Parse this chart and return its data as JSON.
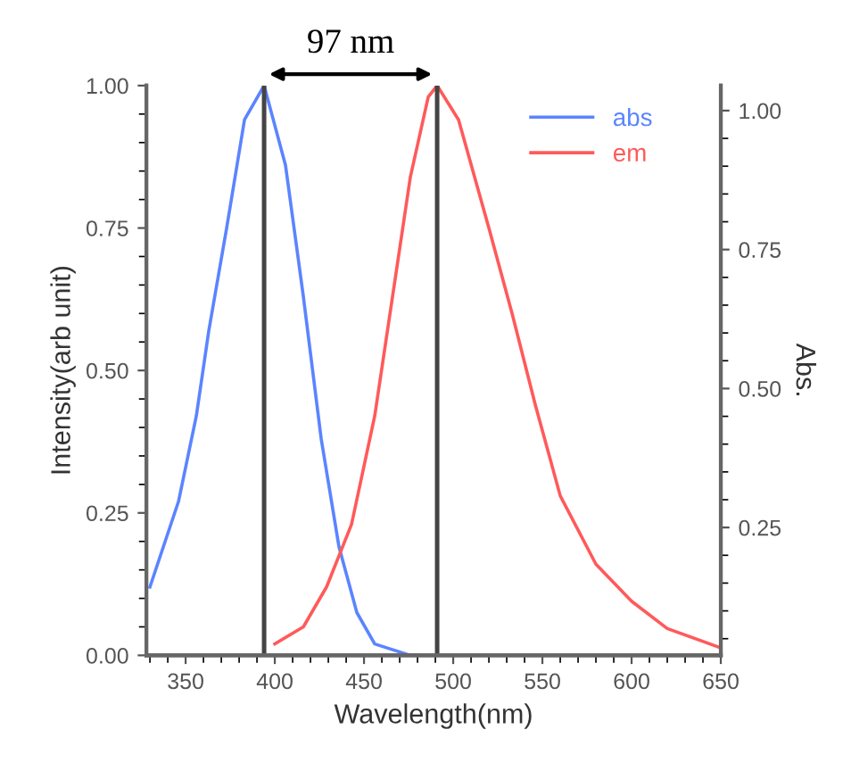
{
  "chart_data": {
    "type": "line",
    "xlabel": "Wavelength(nm)",
    "ylabel": "Intensity(arb unit)",
    "y2label": "Abs.",
    "xlim": [
      328,
      650
    ],
    "xticks": [
      350,
      400,
      450,
      500,
      550,
      600,
      650
    ],
    "ylim": [
      0,
      1.0
    ],
    "yticks": [
      {
        "value": 0.0,
        "label": "0.00"
      },
      {
        "value": 0.25,
        "label": "0.25"
      },
      {
        "value": 0.5,
        "label": "0.50"
      },
      {
        "value": 0.75,
        "label": "0.75"
      },
      {
        "value": 1.0,
        "label": "1.00"
      }
    ],
    "y2lim": [
      0.02,
      1.045
    ],
    "y2ticks": [
      {
        "value": 0.25,
        "label": "0.25"
      },
      {
        "value": 0.5,
        "label": "0.50"
      },
      {
        "value": 0.75,
        "label": "0.75"
      },
      {
        "value": 1.0,
        "label": "1.00"
      }
    ],
    "series": [
      {
        "name": "abs",
        "color": "#5b84ff",
        "x": [
          330,
          346,
          356,
          363,
          373,
          383,
          394,
          406,
          416,
          426,
          436,
          446,
          456,
          476,
          480
        ],
        "values": [
          0.12,
          0.27,
          0.42,
          0.57,
          0.75,
          0.94,
          1.0,
          0.86,
          0.63,
          0.38,
          0.19,
          0.075,
          0.02,
          0.0,
          0.0
        ]
      },
      {
        "name": "em",
        "color": "#ff5a5a",
        "x": [
          400,
          416,
          429,
          443,
          456,
          466,
          476,
          486,
          491,
          503,
          520,
          533,
          546,
          560,
          580,
          600,
          620,
          650
        ],
        "values": [
          0.02,
          0.05,
          0.12,
          0.23,
          0.42,
          0.63,
          0.84,
          0.98,
          1.0,
          0.94,
          0.75,
          0.6,
          0.44,
          0.28,
          0.16,
          0.095,
          0.047,
          0.013
        ]
      }
    ],
    "ref_lines": [
      {
        "axis": "x",
        "value": 394,
        "color": "#444444"
      },
      {
        "axis": "x",
        "value": 491,
        "color": "#444444"
      }
    ],
    "annotations": [
      "97 nm"
    ],
    "legend": "top right",
    "grid": false,
    "line_style": "solid",
    "marker": "none"
  }
}
